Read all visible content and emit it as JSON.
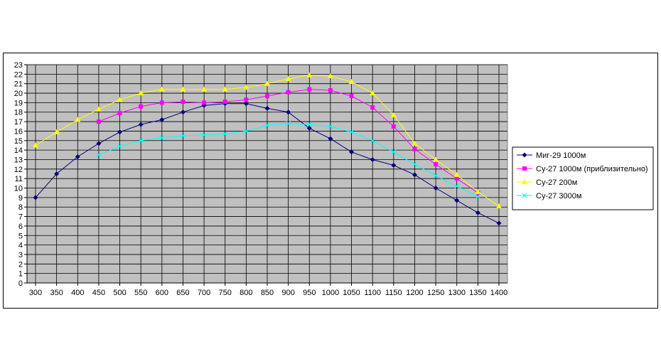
{
  "chart_data": {
    "type": "line",
    "title": "",
    "xlabel": "",
    "ylabel": "",
    "x": [
      300,
      350,
      400,
      450,
      500,
      550,
      600,
      650,
      700,
      750,
      800,
      850,
      900,
      950,
      1000,
      1050,
      1100,
      1150,
      1200,
      1250,
      1300,
      1350,
      1400
    ],
    "ylim": [
      0,
      23
    ],
    "xlim": [
      300,
      1400
    ],
    "grid": true,
    "legend_position": "right",
    "plot_background": "#c0c0c0",
    "series": [
      {
        "name": "Миг-29 1000м",
        "color": "#000080",
        "marker": "diamond",
        "points": [
          [
            300,
            9.0
          ],
          [
            350,
            11.5
          ],
          [
            400,
            13.3
          ],
          [
            450,
            14.7
          ],
          [
            500,
            15.9
          ],
          [
            550,
            16.7
          ],
          [
            600,
            17.2
          ],
          [
            650,
            18.0
          ],
          [
            700,
            18.7
          ],
          [
            750,
            18.9
          ],
          [
            800,
            18.9
          ],
          [
            850,
            18.4
          ],
          [
            900,
            18.0
          ],
          [
            950,
            16.3
          ],
          [
            1000,
            15.2
          ],
          [
            1050,
            13.8
          ],
          [
            1100,
            13.0
          ],
          [
            1150,
            12.4
          ],
          [
            1200,
            11.4
          ],
          [
            1250,
            10.0
          ],
          [
            1300,
            8.7
          ],
          [
            1350,
            7.4
          ],
          [
            1400,
            6.3
          ]
        ]
      },
      {
        "name": "Су-27 1000м (приблизительно)",
        "color": "#ff00ff",
        "marker": "square",
        "points": [
          [
            450,
            17.0
          ],
          [
            500,
            17.9
          ],
          [
            550,
            18.6
          ],
          [
            600,
            19.0
          ],
          [
            650,
            19.1
          ],
          [
            700,
            19.0
          ],
          [
            750,
            19.1
          ],
          [
            800,
            19.3
          ],
          [
            850,
            19.7
          ],
          [
            900,
            20.1
          ],
          [
            950,
            20.4
          ],
          [
            1000,
            20.3
          ],
          [
            1050,
            19.7
          ],
          [
            1100,
            18.5
          ],
          [
            1150,
            16.5
          ],
          [
            1200,
            14.1
          ],
          [
            1250,
            12.5
          ],
          [
            1300,
            11.0
          ],
          [
            1350,
            9.5
          ]
        ]
      },
      {
        "name": "Су-27 200м",
        "color": "#ffff00",
        "marker": "triangle",
        "points": [
          [
            300,
            14.5
          ],
          [
            350,
            15.9
          ],
          [
            400,
            17.2
          ],
          [
            450,
            18.3
          ],
          [
            500,
            19.3
          ],
          [
            550,
            20.0
          ],
          [
            600,
            20.4
          ],
          [
            650,
            20.4
          ],
          [
            700,
            20.4
          ],
          [
            750,
            20.4
          ],
          [
            800,
            20.6
          ],
          [
            850,
            21.0
          ],
          [
            900,
            21.5
          ],
          [
            950,
            21.9
          ],
          [
            1000,
            21.8
          ],
          [
            1050,
            21.2
          ],
          [
            1100,
            20.0
          ],
          [
            1150,
            17.7
          ],
          [
            1200,
            14.7
          ],
          [
            1250,
            13.0
          ],
          [
            1300,
            11.4
          ],
          [
            1350,
            9.6
          ],
          [
            1400,
            8.1
          ]
        ]
      },
      {
        "name": "Су-27 3000м",
        "color": "#00ffff",
        "marker": "x",
        "points": [
          [
            450,
            13.5
          ],
          [
            500,
            14.4
          ],
          [
            550,
            15.0
          ],
          [
            600,
            15.3
          ],
          [
            650,
            15.5
          ],
          [
            700,
            15.6
          ],
          [
            750,
            15.7
          ],
          [
            800,
            16.0
          ],
          [
            850,
            16.6
          ],
          [
            900,
            16.8
          ],
          [
            950,
            16.7
          ],
          [
            1000,
            16.5
          ],
          [
            1050,
            15.9
          ],
          [
            1100,
            15.0
          ],
          [
            1150,
            13.8
          ],
          [
            1200,
            12.5
          ],
          [
            1250,
            11.3
          ],
          [
            1300,
            10.2
          ],
          [
            1350,
            9.1
          ]
        ]
      }
    ]
  }
}
